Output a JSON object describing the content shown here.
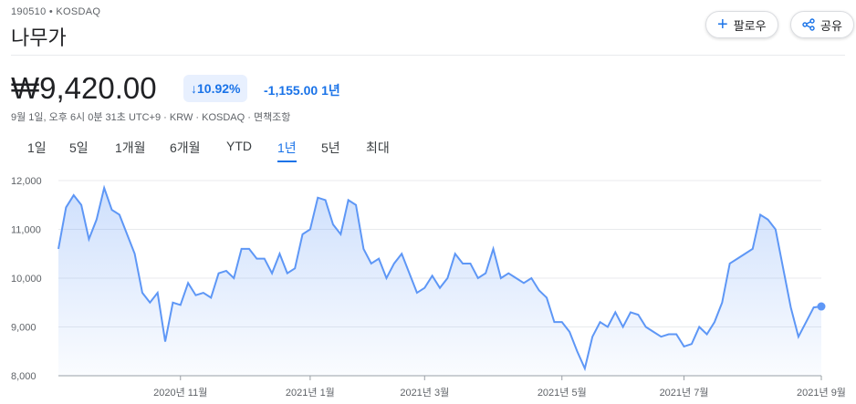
{
  "header": {
    "ticker": "190510 • KOSDAQ",
    "name": "나무가",
    "follow": "팔로우",
    "share": "공유",
    "price": "₩9,420.00",
    "change_pct": "10.92%",
    "change_abs": "-1,155.00",
    "change_period": "1년",
    "meta": "9월 1일, 오후 6시 0분 31초 UTC+9 · KRW · KOSDAQ · 면책조항",
    "tabs": [
      "1일",
      "5일",
      "1개월",
      "6개월",
      "YTD",
      "1년",
      "5년",
      "최대"
    ],
    "active_tab": 5
  },
  "chart_data": {
    "type": "area",
    "color": "#5e97f6",
    "categories": [
      null,
      null,
      null,
      null,
      null,
      null,
      null,
      null,
      null,
      null,
      null,
      null,
      null,
      null,
      null,
      null,
      "2020년 11월",
      null,
      null,
      null,
      null,
      null,
      null,
      null,
      null,
      null,
      null,
      null,
      null,
      null,
      null,
      null,
      null,
      "2021년 1월",
      null,
      null,
      null,
      null,
      null,
      null,
      null,
      null,
      null,
      null,
      null,
      null,
      null,
      null,
      "2021년 3월",
      null,
      null,
      null,
      null,
      null,
      null,
      null,
      null,
      null,
      null,
      null,
      null,
      null,
      null,
      null,
      null,
      null,
      "2021년 5월",
      null,
      null,
      null,
      null,
      null,
      null,
      null,
      null,
      null,
      null,
      null,
      null,
      null,
      null,
      null,
      "2021년 7월",
      null,
      null,
      null,
      null,
      null,
      null,
      null,
      null,
      null,
      null,
      null,
      null,
      null,
      null,
      null,
      null,
      null,
      "2021년 9월"
    ],
    "values": [
      10600,
      11450,
      11700,
      11500,
      10800,
      11200,
      11850,
      11400,
      11300,
      10900,
      10500,
      9700,
      9500,
      9700,
      8700,
      9500,
      9450,
      9900,
      9650,
      9700,
      9600,
      10100,
      10150,
      10000,
      10600,
      10600,
      10400,
      10400,
      10100,
      10500,
      10100,
      10200,
      10900,
      11000,
      11650,
      11600,
      11100,
      10900,
      11600,
      11500,
      10600,
      10300,
      10400,
      10000,
      10300,
      10500,
      10100,
      9700,
      9800,
      10050,
      9800,
      10000,
      10500,
      10300,
      10300,
      10000,
      10100,
      10600,
      10000,
      10100,
      10000,
      9900,
      10000,
      9750,
      9600,
      9100,
      9100,
      8900,
      8500,
      8150,
      8800,
      9100,
      9000,
      9300,
      9000,
      9300,
      9250,
      9000,
      8900,
      8800,
      8850,
      8850,
      8600,
      8650,
      9000,
      8850,
      9100,
      9500,
      10300,
      10400,
      10500,
      10600,
      11300,
      11200,
      11000,
      10200,
      9400,
      8800,
      9100,
      9400,
      9420
    ],
    "ylim": [
      8000,
      12000
    ],
    "yticks": [
      {
        "value": 8000,
        "label": "8,000"
      },
      {
        "value": 9000,
        "label": "9,000"
      },
      {
        "value": 10000,
        "label": "10,000"
      },
      {
        "value": 11000,
        "label": "11,000"
      },
      {
        "value": 12000,
        "label": "12,000"
      }
    ],
    "grid": true
  }
}
